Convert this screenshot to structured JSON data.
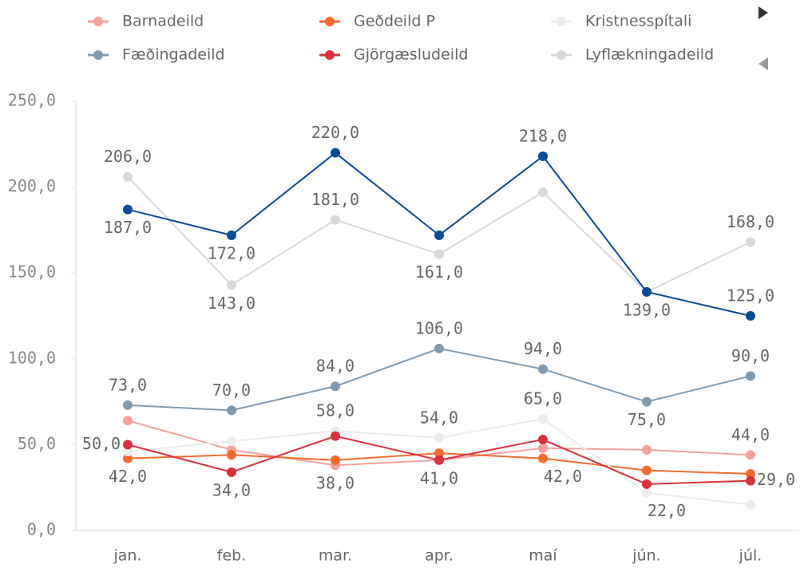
{
  "chart_data": {
    "type": "line",
    "categories": [
      "jan.",
      "feb.",
      "mar.",
      "apr.",
      "maí",
      "jún.",
      "júl."
    ],
    "ylim": [
      0,
      250
    ],
    "yticks": [
      {
        "value": 0,
        "label": "0,0"
      },
      {
        "value": 50,
        "label": "50,0"
      },
      {
        "value": 100,
        "label": "100,0"
      },
      {
        "value": 150,
        "label": "150,0"
      },
      {
        "value": 200,
        "label": "200,0"
      },
      {
        "value": 250,
        "label": "250,0"
      }
    ],
    "series": [
      {
        "name": "Barnadeild",
        "color": "#f4a09c",
        "values": [
          64,
          47,
          38,
          41,
          48,
          47,
          44
        ],
        "value_labels": [
          null,
          null,
          "38,0",
          null,
          null,
          null,
          "44,0"
        ]
      },
      {
        "name": "Geðdeild P",
        "color": "#f26b2d",
        "values": [
          42,
          44,
          41,
          45,
          42,
          35,
          33
        ],
        "value_labels": [
          "42,0",
          null,
          null,
          null,
          "42,0",
          null,
          null
        ]
      },
      {
        "name": "Kristnesspítali",
        "color": "#ececec",
        "values": [
          46,
          52,
          58,
          54,
          65,
          22,
          15
        ],
        "value_labels": [
          null,
          null,
          "58,0",
          "54,0",
          "65,0",
          "22,0",
          null
        ]
      },
      {
        "name": "Fæðingadeild",
        "color": "#7f9ab0",
        "values": [
          73,
          70,
          84,
          106,
          94,
          75,
          90
        ],
        "value_labels": [
          "73,0",
          "70,0",
          "84,0",
          "106,0",
          "94,0",
          "75,0",
          "90,0"
        ]
      },
      {
        "name": "Gjörgæsludeild",
        "color": "#d9303b",
        "values": [
          50,
          34,
          55,
          41,
          53,
          27,
          29
        ],
        "value_labels": [
          "50,0",
          "34,0",
          null,
          "41,0",
          null,
          null,
          "29,0"
        ]
      },
      {
        "name": "Lyflækningadeild",
        "color": "#d8d8d8",
        "values": [
          206,
          143,
          181,
          161,
          197,
          139,
          168
        ],
        "value_labels": [
          "206,0",
          "143,0",
          "181,0",
          "161,0",
          null,
          null,
          "168,0"
        ]
      },
      {
        "color": "#0b4a98",
        "values": [
          187,
          172,
          220,
          172,
          218,
          139,
          125
        ],
        "value_labels": [
          "187,0",
          "172,0",
          "220,0",
          null,
          "218,0",
          "139,0",
          "125,0"
        ]
      }
    ]
  }
}
